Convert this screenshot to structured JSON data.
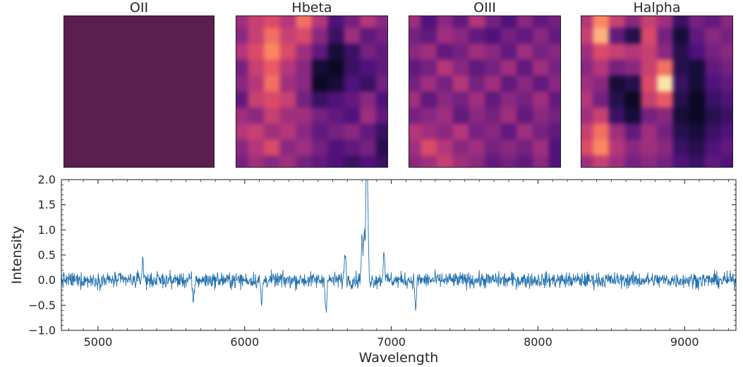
{
  "chart_data": [
    {
      "type": "heatmap",
      "title": "OII",
      "colormap": "magma",
      "uniform_value": 0.3,
      "uniform_color": "#5b1f4f"
    },
    {
      "type": "heatmap",
      "title": "Hbeta",
      "colormap": "magma",
      "grid_size": 10,
      "values": [
        [
          0.45,
          0.55,
          0.6,
          0.5,
          0.7,
          0.5,
          0.25,
          0.35,
          0.5,
          0.4
        ],
        [
          0.4,
          0.55,
          0.7,
          0.55,
          0.6,
          0.4,
          0.2,
          0.45,
          0.3,
          0.35
        ],
        [
          0.5,
          0.6,
          0.75,
          0.6,
          0.45,
          0.3,
          0.1,
          0.2,
          0.35,
          0.3
        ],
        [
          0.35,
          0.55,
          0.65,
          0.5,
          0.4,
          0.1,
          0.05,
          0.2,
          0.25,
          0.3
        ],
        [
          0.4,
          0.5,
          0.7,
          0.45,
          0.4,
          0.05,
          0.1,
          0.25,
          0.2,
          0.35
        ],
        [
          0.3,
          0.55,
          0.6,
          0.55,
          0.35,
          0.2,
          0.25,
          0.3,
          0.4,
          0.25
        ],
        [
          0.45,
          0.4,
          0.55,
          0.45,
          0.45,
          0.35,
          0.3,
          0.25,
          0.45,
          0.3
        ],
        [
          0.5,
          0.55,
          0.45,
          0.5,
          0.4,
          0.3,
          0.35,
          0.4,
          0.3,
          0.2
        ],
        [
          0.4,
          0.5,
          0.6,
          0.4,
          0.45,
          0.35,
          0.25,
          0.3,
          0.35,
          0.15
        ],
        [
          0.35,
          0.45,
          0.4,
          0.45,
          0.35,
          0.3,
          0.25,
          0.2,
          0.25,
          0.2
        ]
      ]
    },
    {
      "type": "heatmap",
      "title": "OIII",
      "colormap": "magma",
      "grid_size": 10,
      "values": [
        [
          0.45,
          0.25,
          0.4,
          0.3,
          0.5,
          0.35,
          0.25,
          0.4,
          0.3,
          0.35
        ],
        [
          0.35,
          0.3,
          0.45,
          0.4,
          0.3,
          0.25,
          0.35,
          0.3,
          0.4,
          0.3
        ],
        [
          0.4,
          0.45,
          0.3,
          0.35,
          0.45,
          0.4,
          0.3,
          0.45,
          0.35,
          0.4
        ],
        [
          0.3,
          0.35,
          0.5,
          0.4,
          0.3,
          0.35,
          0.45,
          0.3,
          0.45,
          0.35
        ],
        [
          0.35,
          0.45,
          0.35,
          0.5,
          0.35,
          0.45,
          0.3,
          0.4,
          0.3,
          0.4
        ],
        [
          0.45,
          0.3,
          0.4,
          0.35,
          0.45,
          0.3,
          0.4,
          0.35,
          0.45,
          0.3
        ],
        [
          0.35,
          0.4,
          0.45,
          0.3,
          0.4,
          0.35,
          0.45,
          0.3,
          0.4,
          0.35
        ],
        [
          0.5,
          0.45,
          0.4,
          0.5,
          0.35,
          0.4,
          0.3,
          0.45,
          0.35,
          0.3
        ],
        [
          0.45,
          0.6,
          0.5,
          0.4,
          0.45,
          0.35,
          0.4,
          0.35,
          0.45,
          0.25
        ],
        [
          0.4,
          0.45,
          0.55,
          0.45,
          0.4,
          0.3,
          0.35,
          0.3,
          0.4,
          0.25
        ]
      ]
    },
    {
      "type": "heatmap",
      "title": "Halpha",
      "colormap": "magma",
      "grid_size": 10,
      "values": [
        [
          0.5,
          0.75,
          0.55,
          0.4,
          0.55,
          0.45,
          0.2,
          0.35,
          0.3,
          0.4
        ],
        [
          0.55,
          0.85,
          0.3,
          0.15,
          0.6,
          0.35,
          0.1,
          0.3,
          0.4,
          0.35
        ],
        [
          0.45,
          0.6,
          0.55,
          0.5,
          0.55,
          0.4,
          0.15,
          0.25,
          0.35,
          0.4
        ],
        [
          0.4,
          0.5,
          0.35,
          0.4,
          0.55,
          0.7,
          0.15,
          0.1,
          0.3,
          0.35
        ],
        [
          0.45,
          0.4,
          0.1,
          0.15,
          0.6,
          0.95,
          0.2,
          0.1,
          0.25,
          0.3
        ],
        [
          0.5,
          0.35,
          0.15,
          0.05,
          0.55,
          0.65,
          0.15,
          0.05,
          0.2,
          0.25
        ],
        [
          0.45,
          0.55,
          0.2,
          0.1,
          0.35,
          0.4,
          0.1,
          0.05,
          0.15,
          0.2
        ],
        [
          0.55,
          0.7,
          0.45,
          0.3,
          0.45,
          0.35,
          0.15,
          0.1,
          0.2,
          0.25
        ],
        [
          0.6,
          0.75,
          0.5,
          0.4,
          0.45,
          0.4,
          0.2,
          0.15,
          0.25,
          0.3
        ],
        [
          0.45,
          0.55,
          0.45,
          0.35,
          0.4,
          0.35,
          0.25,
          0.2,
          0.3,
          0.25
        ]
      ]
    },
    {
      "type": "line",
      "title": "",
      "xlabel": "Wavelength",
      "ylabel": "Intensity",
      "xlim": [
        4750,
        9350
      ],
      "ylim": [
        -1.0,
        2.0
      ],
      "xticks": [
        5000,
        6000,
        7000,
        8000,
        9000
      ],
      "xtick_labels": [
        "5000",
        "6000",
        "7000",
        "8000",
        "9000"
      ],
      "yticks": [
        -1.0,
        -0.5,
        0.0,
        0.5,
        1.0,
        1.5,
        2.0
      ],
      "ytick_labels": [
        "−1.0",
        "−0.5",
        "0.0",
        "0.5",
        "1.0",
        "1.5",
        "2.0"
      ],
      "line_color": "#1f6fae",
      "noise_level": 0.11,
      "emission_lines": [
        {
          "x": 6685,
          "y": 0.58
        },
        {
          "x": 6800,
          "y": 0.88
        },
        {
          "x": 6815,
          "y": 0.9
        },
        {
          "x": 6830,
          "y": 1.95
        },
        {
          "x": 6838,
          "y": 1.55
        },
        {
          "x": 6950,
          "y": 0.64
        },
        {
          "x": 5305,
          "y": 0.42
        },
        {
          "x": 6115,
          "y": -0.5
        },
        {
          "x": 6555,
          "y": -0.58
        },
        {
          "x": 7165,
          "y": -0.57
        },
        {
          "x": 5650,
          "y": -0.48
        }
      ]
    }
  ]
}
